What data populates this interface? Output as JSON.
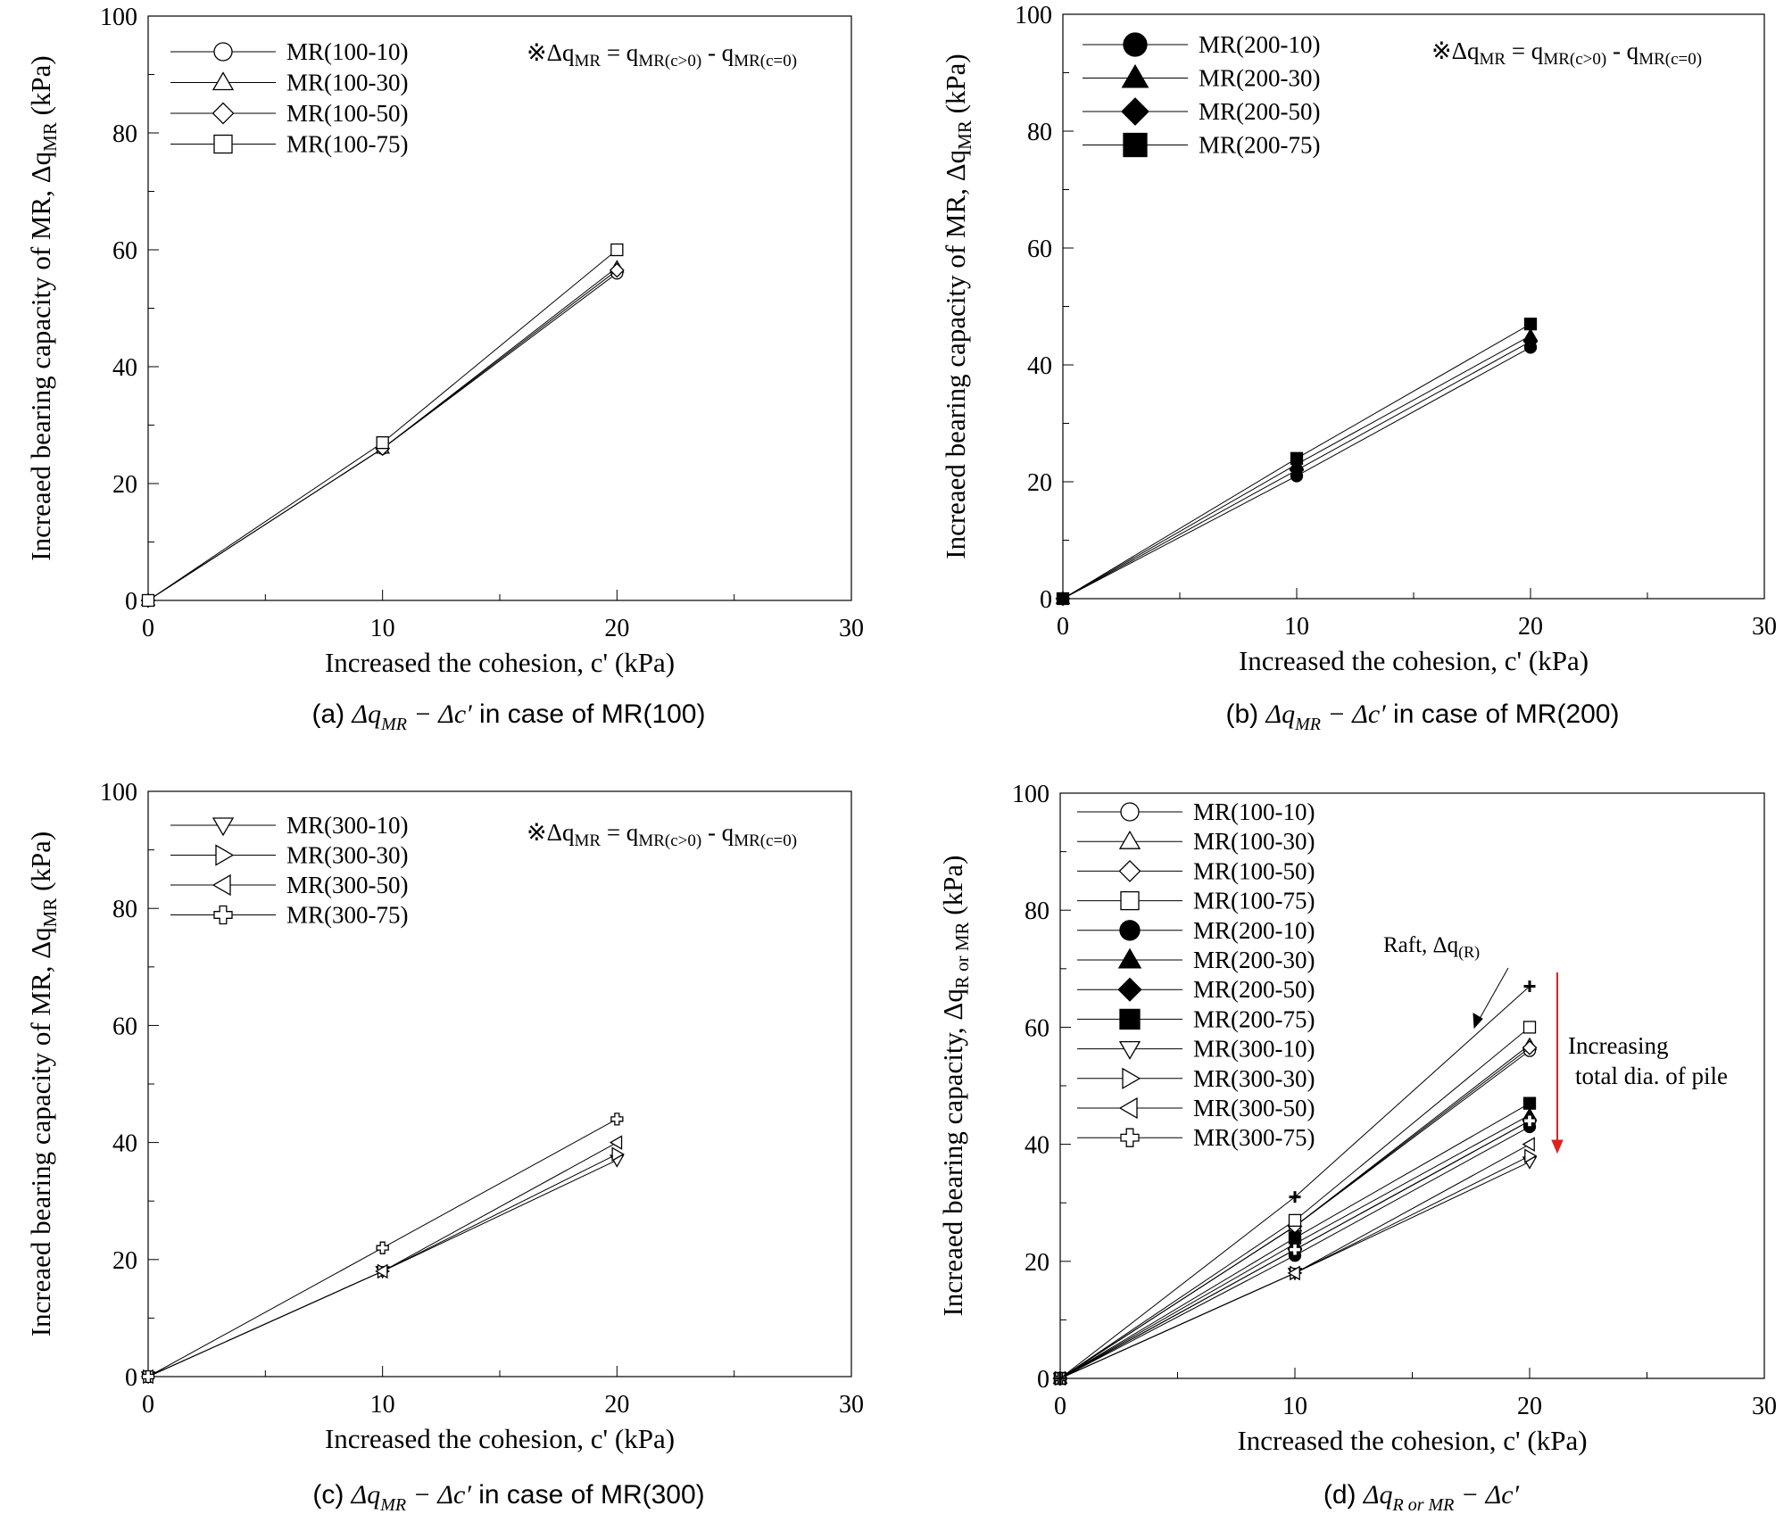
{
  "figure": {
    "note_prefix": "※Δq",
    "note_sub1": "MR",
    "note_mid": " = q",
    "note_sub2": "MR(c>0)",
    "note_dash": " - q",
    "note_sub3": "MR(c=0)"
  },
  "chart_data": [
    {
      "type": "line",
      "panel": "a",
      "ylabel_main": "Increaed bearing capacity of MR, Δq",
      "ylabel_sub": "MR",
      "ylabel_tail": " (kPa)",
      "xlabel": "Increased the cohesion, c' (kPa)",
      "caption": "(a) Δq_MR − Δc′ in case of MR(100)",
      "xlim": [
        0,
        30
      ],
      "ylim": [
        0,
        100
      ],
      "xticks": [
        0,
        10,
        20,
        30
      ],
      "yticks": [
        0,
        20,
        40,
        60,
        80,
        100
      ],
      "grid": false,
      "legend_position": "top-left",
      "show_note": true,
      "x": [
        0,
        10,
        20
      ],
      "series": [
        {
          "name": "MR(100-10)",
          "marker": "circle-open",
          "values": [
            0,
            26,
            56
          ]
        },
        {
          "name": "MR(100-30)",
          "marker": "triangle-up-open",
          "values": [
            0,
            26,
            57
          ]
        },
        {
          "name": "MR(100-50)",
          "marker": "diamond-open",
          "values": [
            0,
            26,
            56.5
          ]
        },
        {
          "name": "MR(100-75)",
          "marker": "square-open",
          "values": [
            0,
            27,
            60
          ]
        }
      ]
    },
    {
      "type": "line",
      "panel": "b",
      "ylabel_main": "Increaed bearing capacity of MR, Δq",
      "ylabel_sub": "MR",
      "ylabel_tail": " (kPa)",
      "xlabel": "Increased the cohesion, c' (kPa)",
      "caption": "(b) Δq_MR − Δc′ in case of MR(200)",
      "xlim": [
        0,
        30
      ],
      "ylim": [
        0,
        100
      ],
      "xticks": [
        0,
        10,
        20,
        30
      ],
      "yticks": [
        0,
        20,
        40,
        60,
        80,
        100
      ],
      "grid": false,
      "legend_position": "top-left",
      "show_note": true,
      "x": [
        0,
        10,
        20
      ],
      "series": [
        {
          "name": "MR(200-10)",
          "marker": "circle-filled",
          "values": [
            0,
            21,
            43
          ]
        },
        {
          "name": "MR(200-30)",
          "marker": "triangle-up-filled",
          "values": [
            0,
            23,
            45
          ]
        },
        {
          "name": "MR(200-50)",
          "marker": "diamond-filled",
          "values": [
            0,
            22,
            44
          ]
        },
        {
          "name": "MR(200-75)",
          "marker": "square-filled",
          "values": [
            0,
            24,
            47
          ]
        }
      ]
    },
    {
      "type": "line",
      "panel": "c",
      "ylabel_main": "Increaed bearing capacity of MR, Δq",
      "ylabel_sub": "MR",
      "ylabel_tail": " (kPa)",
      "xlabel": "Increased the cohesion, c' (kPa)",
      "caption": "(c) Δq_MR − Δc′ in case of MR(300)",
      "xlim": [
        0,
        30
      ],
      "ylim": [
        0,
        100
      ],
      "xticks": [
        0,
        10,
        20,
        30
      ],
      "yticks": [
        0,
        20,
        40,
        60,
        80,
        100
      ],
      "grid": false,
      "legend_position": "top-left",
      "show_note": true,
      "x": [
        0,
        10,
        20
      ],
      "series": [
        {
          "name": "MR(300-10)",
          "marker": "triangle-down-open",
          "values": [
            0,
            18,
            37
          ]
        },
        {
          "name": "MR(300-30)",
          "marker": "triangle-right-open",
          "values": [
            0,
            18,
            38
          ]
        },
        {
          "name": "MR(300-50)",
          "marker": "triangle-left-open",
          "values": [
            0,
            18,
            40
          ]
        },
        {
          "name": "MR(300-75)",
          "marker": "cross-open",
          "values": [
            0,
            22,
            44
          ]
        }
      ]
    },
    {
      "type": "line",
      "panel": "d",
      "ylabel_main": "Increaed bearing capacity, Δq",
      "ylabel_sub": "R or MR",
      "ylabel_tail": " (kPa)",
      "xlabel": "Increased the cohesion, c' (kPa)",
      "caption": "(d) Δq_R or MR − Δc′",
      "xlim": [
        0,
        30
      ],
      "ylim": [
        0,
        100
      ],
      "xticks": [
        0,
        10,
        20,
        30
      ],
      "yticks": [
        0,
        20,
        40,
        60,
        80,
        100
      ],
      "grid": false,
      "legend_position": "top-left",
      "show_note": false,
      "annotations": {
        "raft_text": "Raft, Δq",
        "raft_sub": "(R)",
        "increasing_line1": "Increasing",
        "increasing_line2": "total dia. of pile",
        "arrow_color": "#e02020"
      },
      "x": [
        0,
        10,
        20
      ],
      "series": [
        {
          "name": "MR(100-10)",
          "marker": "circle-open",
          "values": [
            0,
            26,
            56
          ]
        },
        {
          "name": "MR(100-30)",
          "marker": "triangle-up-open",
          "values": [
            0,
            26,
            57
          ]
        },
        {
          "name": "MR(100-50)",
          "marker": "diamond-open",
          "values": [
            0,
            26,
            56.5
          ]
        },
        {
          "name": "MR(100-75)",
          "marker": "square-open",
          "values": [
            0,
            27,
            60
          ]
        },
        {
          "name": "MR(200-10)",
          "marker": "circle-filled",
          "values": [
            0,
            21,
            43
          ]
        },
        {
          "name": "MR(200-30)",
          "marker": "triangle-up-filled",
          "values": [
            0,
            23,
            45
          ]
        },
        {
          "name": "MR(200-50)",
          "marker": "diamond-filled",
          "values": [
            0,
            22,
            44
          ]
        },
        {
          "name": "MR(200-75)",
          "marker": "square-filled",
          "values": [
            0,
            24,
            47
          ]
        },
        {
          "name": "MR(300-10)",
          "marker": "triangle-down-open",
          "values": [
            0,
            18,
            37
          ]
        },
        {
          "name": "MR(300-30)",
          "marker": "triangle-right-open",
          "values": [
            0,
            18,
            38
          ]
        },
        {
          "name": "MR(300-50)",
          "marker": "triangle-left-open",
          "values": [
            0,
            18,
            40
          ]
        },
        {
          "name": "MR(300-75)",
          "marker": "cross-open",
          "values": [
            0,
            22,
            44
          ]
        },
        {
          "marker": "plus-bold",
          "values": [
            0,
            31,
            67
          ]
        }
      ]
    }
  ]
}
